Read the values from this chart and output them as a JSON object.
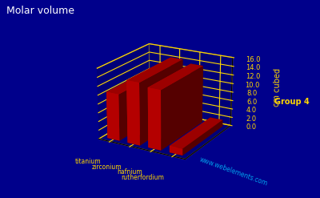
{
  "title": "Molar volume",
  "ylabel": "cm cubed",
  "xlabel_group": "Group 4",
  "watermark": "www.webelements.com",
  "background_color": "#00008B",
  "bar_color": "#CC0000",
  "grid_color": "#FFD700",
  "title_color": "#FFFFFF",
  "label_color": "#FFD700",
  "watermark_color": "#00BFFF",
  "elements": [
    "titanium",
    "zirconium",
    "hafnium",
    "rutherfordium"
  ],
  "values": [
    10.6,
    14.1,
    13.4,
    1.5
  ],
  "ylim": [
    0.0,
    16.0
  ],
  "yticks": [
    0.0,
    2.0,
    4.0,
    6.0,
    8.0,
    10.0,
    12.0,
    14.0,
    16.0
  ]
}
